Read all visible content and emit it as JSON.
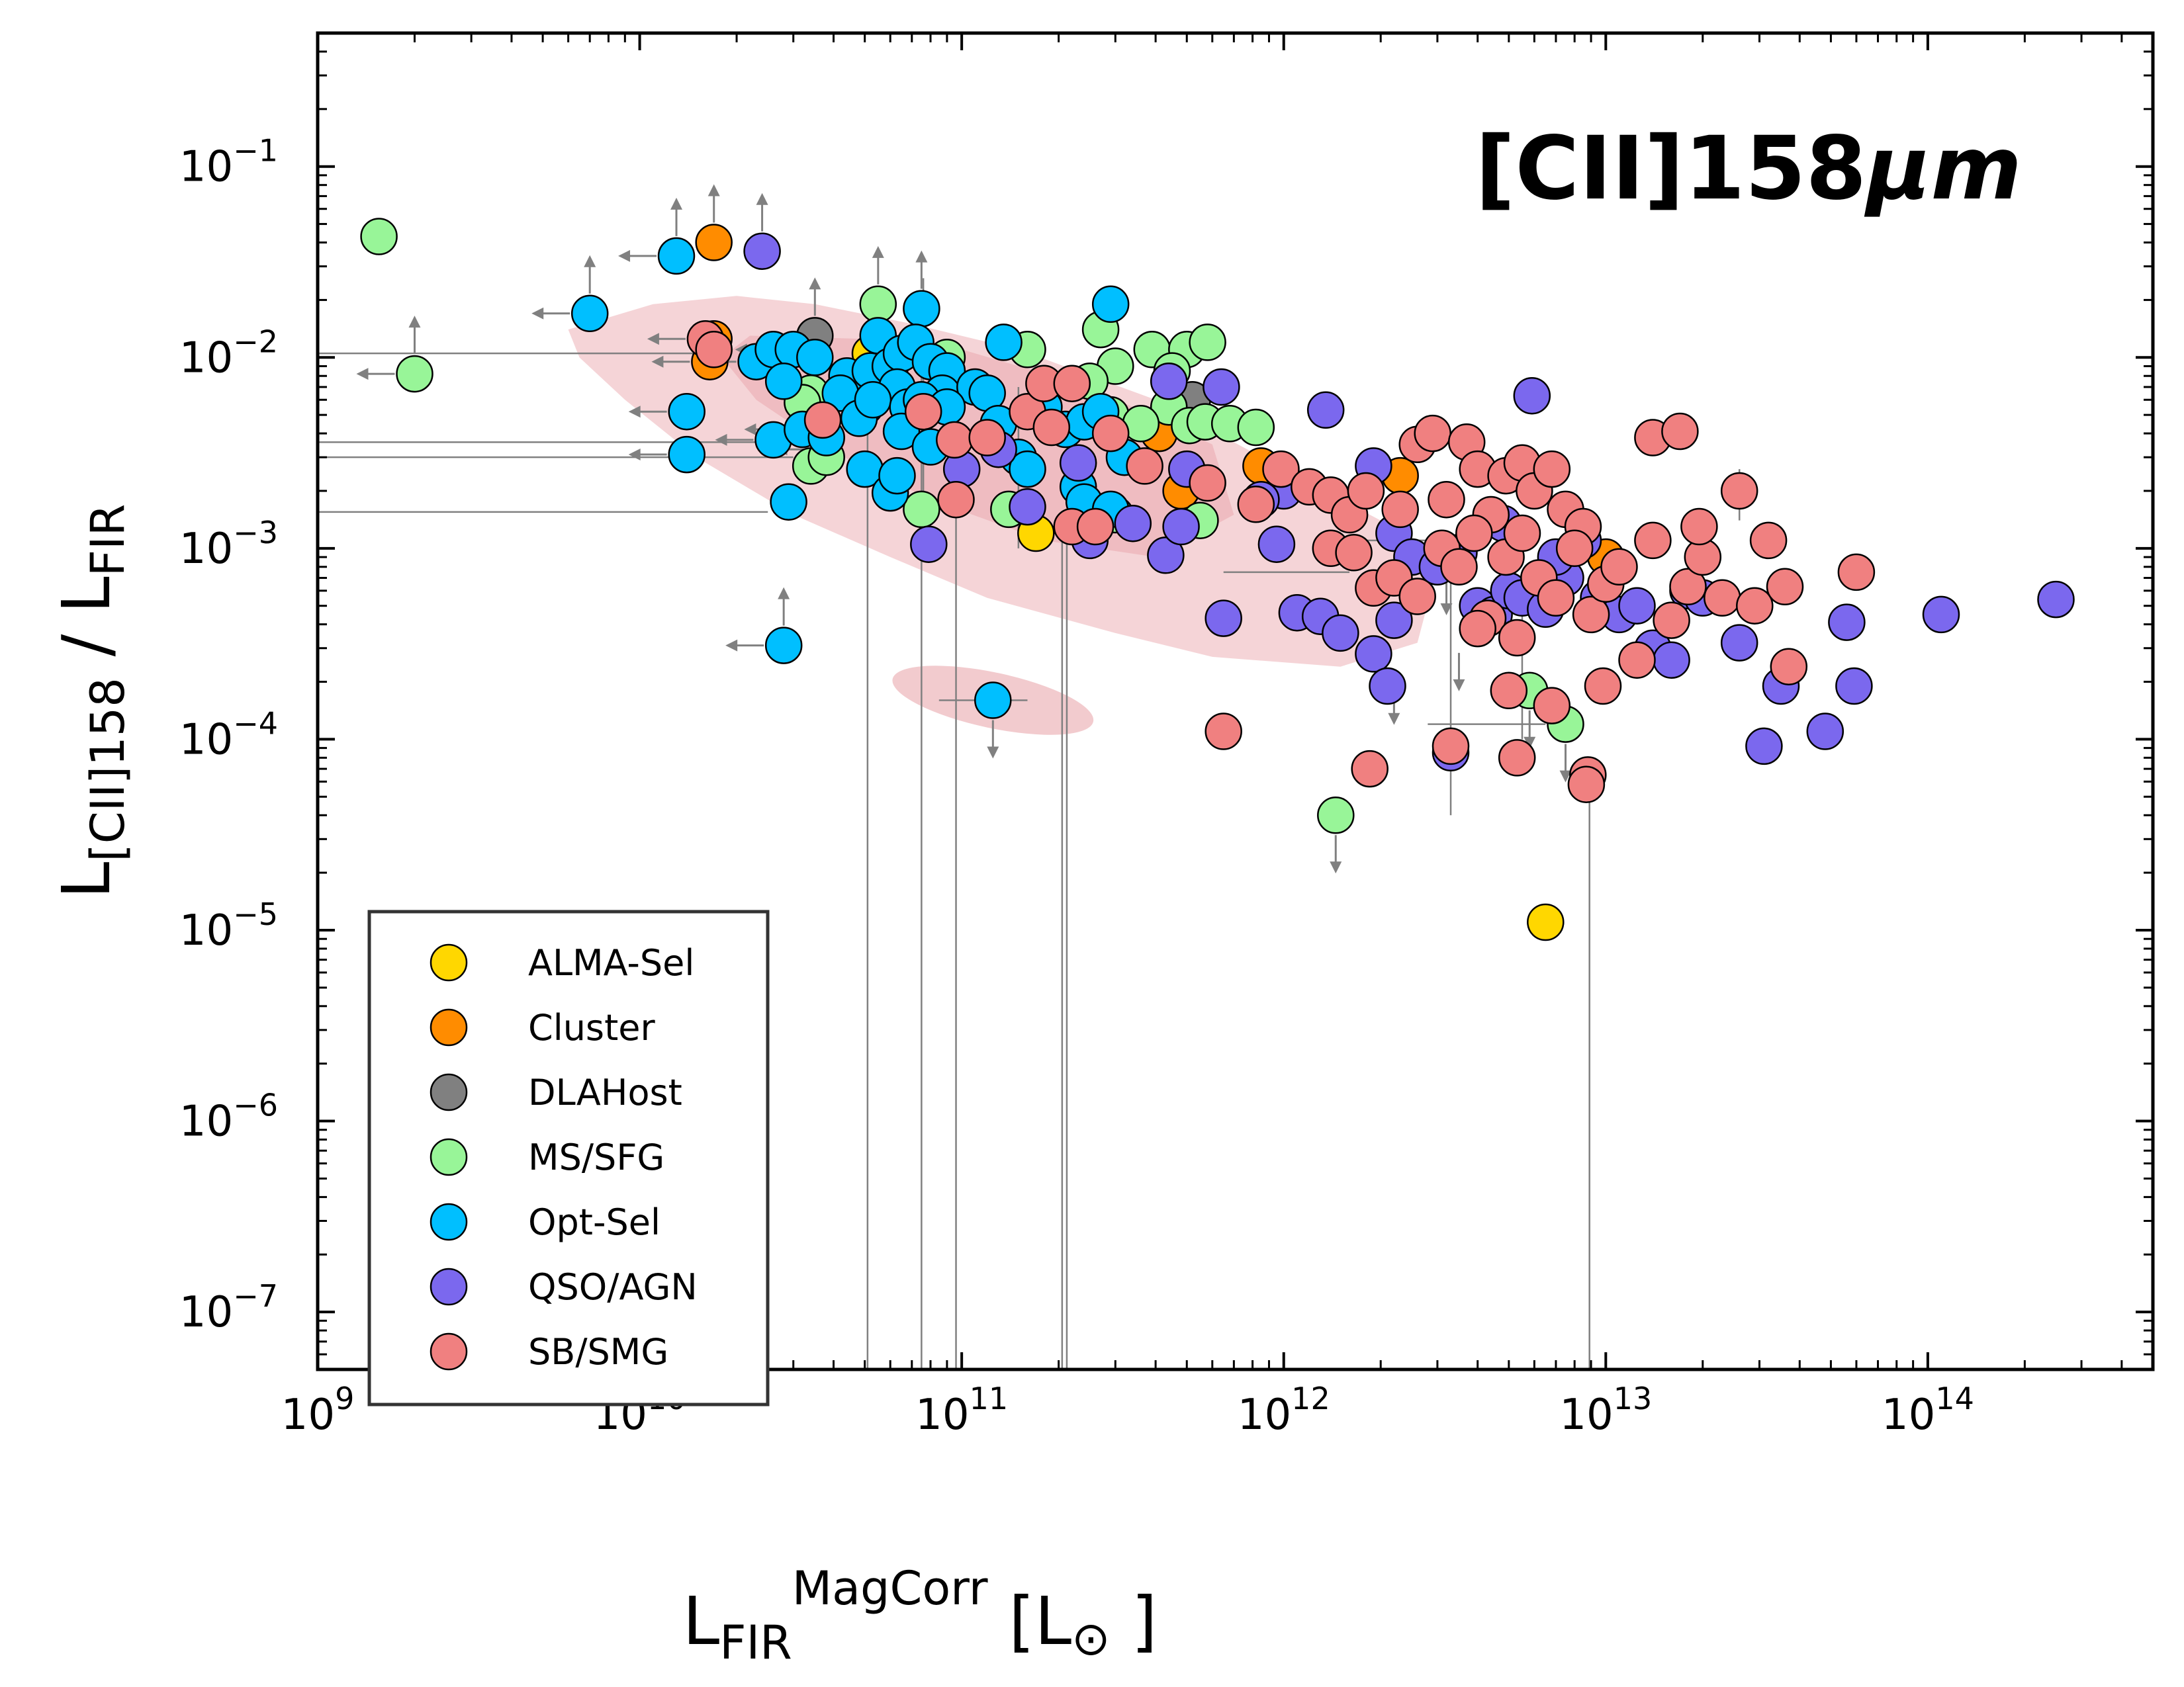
{
  "chart_data": {
    "type": "scatter",
    "annotation": "[CII]158",
    "annotation_unit": "μm",
    "xlabel": {
      "main": "L",
      "sub": "FIR",
      "sup": "MagCorr",
      "unit_open": " [L",
      "sun": "⊙",
      "unit_close": " ]"
    },
    "ylabel": {
      "main": "L",
      "sub": "[CII]158",
      "rest": " / L",
      "sub2": "FIR"
    },
    "x_scale": "log",
    "y_scale": "log",
    "xlim": [
      1000000000.0,
      500000000000000.0
    ],
    "ylim": [
      5e-08,
      0.5
    ],
    "x_ticks": [
      {
        "base": "10",
        "exp": "9"
      },
      {
        "base": "10",
        "exp": "10"
      },
      {
        "base": "10",
        "exp": "11"
      },
      {
        "base": "10",
        "exp": "12"
      },
      {
        "base": "10",
        "exp": "13"
      },
      {
        "base": "10",
        "exp": "14"
      }
    ],
    "y_ticks": [
      {
        "base": "10",
        "exp": "−7"
      },
      {
        "base": "10",
        "exp": "−6"
      },
      {
        "base": "10",
        "exp": "−5"
      },
      {
        "base": "10",
        "exp": "−4"
      },
      {
        "base": "10",
        "exp": "−3"
      },
      {
        "base": "10",
        "exp": "−2"
      },
      {
        "base": "10",
        "exp": "−1"
      }
    ],
    "legend_position": "lower-left",
    "density_contour_color": "#e8a0a6",
    "series": [
      {
        "name": "ALMA-Sel",
        "color": "#ffd700",
        "points": [
          [
            6500000000000.0,
            1.1e-05
          ],
          [
            170000000000.0,
            0.0012
          ],
          [
            52000000000.0,
            0.0105
          ]
        ]
      },
      {
        "name": "Cluster",
        "color": "#ff8c00",
        "points": [
          [
            17000000000.0,
            0.04
          ],
          [
            17000000000.0,
            0.0125
          ],
          [
            16500000000.0,
            0.0095
          ],
          [
            410000000000.0,
            0.004
          ],
          [
            480000000000.0,
            0.002
          ],
          [
            850000000000.0,
            0.0027
          ],
          [
            2300000000000.0,
            0.0024
          ],
          [
            10000000000000.0,
            0.0009
          ]
        ]
      },
      {
        "name": "DLAHost",
        "color": "#808080",
        "points": [
          [
            35000000000.0,
            0.013
          ],
          [
            520000000000.0,
            0.006
          ]
        ]
      },
      {
        "name": "MS/SFG",
        "color": "#98f598",
        "points": [
          [
            1550000000.0,
            0.043
          ],
          [
            2000000000.0,
            0.0082
          ],
          [
            55000000000.0,
            0.019
          ],
          [
            270000000000.0,
            0.014
          ],
          [
            390000000000.0,
            0.011
          ],
          [
            500000000000.0,
            0.011
          ],
          [
            580000000000.0,
            0.012
          ],
          [
            300000000000.0,
            0.009
          ],
          [
            250000000000.0,
            0.0075
          ],
          [
            450000000000.0,
            0.0085
          ],
          [
            34000000000.0,
            0.0065
          ],
          [
            50000000000.0,
            0.0055
          ],
          [
            32000000000.0,
            0.0058
          ],
          [
            290000000000.0,
            0.005
          ],
          [
            440000000000.0,
            0.0055
          ],
          [
            360000000000.0,
            0.0045
          ],
          [
            510000000000.0,
            0.0044
          ],
          [
            570000000000.0,
            0.0046
          ],
          [
            680000000000.0,
            0.0045
          ],
          [
            820000000000.0,
            0.0043
          ],
          [
            34000000000.0,
            0.0027
          ],
          [
            38000000000.0,
            0.003
          ],
          [
            75000000000.0,
            0.0016
          ],
          [
            140000000000.0,
            0.0016
          ],
          [
            300000000000.0,
            0.0015
          ],
          [
            550000000000.0,
            0.0014
          ],
          [
            90000000000.0,
            0.01
          ],
          [
            160000000000.0,
            0.011
          ],
          [
            5800000000000.0,
            0.00018
          ],
          [
            7500000000000.0,
            0.00012
          ],
          [
            1450000000000.0,
            4e-05
          ]
        ]
      },
      {
        "name": "Opt-Sel",
        "color": "#00bfff",
        "points": [
          [
            13000000000.0,
            0.034
          ],
          [
            7000000000.0,
            0.017
          ],
          [
            290000000000.0,
            0.019
          ],
          [
            75000000000.0,
            0.018
          ],
          [
            55000000000.0,
            0.013
          ],
          [
            135000000000.0,
            0.012
          ],
          [
            23000000000.0,
            0.0095
          ],
          [
            26000000000.0,
            0.011
          ],
          [
            30000000000.0,
            0.011
          ],
          [
            35000000000.0,
            0.01
          ],
          [
            44000000000.0,
            0.008
          ],
          [
            52000000000.0,
            0.0085
          ],
          [
            60000000000.0,
            0.009
          ],
          [
            65000000000.0,
            0.0105
          ],
          [
            72000000000.0,
            0.012
          ],
          [
            80000000000.0,
            0.0095
          ],
          [
            90000000000.0,
            0.0085
          ],
          [
            28000000000.0,
            0.0075
          ],
          [
            42000000000.0,
            0.0065
          ],
          [
            63000000000.0,
            0.007
          ],
          [
            87000000000.0,
            0.0065
          ],
          [
            110000000000.0,
            0.007
          ],
          [
            14000000000.0,
            0.0052
          ],
          [
            14000000000.0,
            0.0031
          ],
          [
            29000000000.0,
            0.00175
          ],
          [
            26000000000.0,
            0.0037
          ],
          [
            32000000000.0,
            0.0042
          ],
          [
            38000000000.0,
            0.0038
          ],
          [
            48000000000.0,
            0.0048
          ],
          [
            53000000000.0,
            0.006
          ],
          [
            68000000000.0,
            0.0055
          ],
          [
            75000000000.0,
            0.006
          ],
          [
            65000000000.0,
            0.0041
          ],
          [
            50000000000.0,
            0.0026
          ],
          [
            60000000000.0,
            0.00195
          ],
          [
            63000000000.0,
            0.0024
          ],
          [
            80000000000.0,
            0.0034
          ],
          [
            120000000000.0,
            0.0065
          ],
          [
            130000000000.0,
            0.0045
          ],
          [
            150000000000.0,
            0.003
          ],
          [
            160000000000.0,
            0.0026
          ],
          [
            230000000000.0,
            0.0021
          ],
          [
            240000000000.0,
            0.00175
          ],
          [
            210000000000.0,
            0.0042
          ],
          [
            240000000000.0,
            0.0046
          ],
          [
            320000000000.0,
            0.003
          ],
          [
            290000000000.0,
            0.0016
          ],
          [
            125000000000.0,
            0.00016
          ],
          [
            28000000000.0,
            0.00031
          ],
          [
            90000000000.0,
            0.0055
          ],
          [
            180000000000.0,
            0.0055
          ],
          [
            270000000000.0,
            0.0052
          ]
        ]
      },
      {
        "name": "QSO/AGN",
        "color": "#7b68ee",
        "points": [
          [
            24000000000.0,
            0.036
          ],
          [
            440000000000.0,
            0.0075
          ],
          [
            640000000000.0,
            0.007
          ],
          [
            1350000000000.0,
            0.0053
          ],
          [
            5900000000000.0,
            0.0063
          ],
          [
            250000000000000.0,
            0.00054
          ],
          [
            110000000000000.0,
            0.00045
          ],
          [
            56000000000000.0,
            0.00041
          ],
          [
            59000000000000.0,
            0.00019
          ],
          [
            48000000000000.0,
            0.00011
          ],
          [
            31000000000000.0,
            9.2e-05
          ],
          [
            35000000000000.0,
            0.00019
          ],
          [
            26000000000000.0,
            0.00032
          ],
          [
            79000000000.0,
            0.00105
          ],
          [
            160000000000.0,
            0.00165
          ],
          [
            250000000000.0,
            0.0011
          ],
          [
            340000000000.0,
            0.00135
          ],
          [
            430000000000.0,
            0.00092
          ],
          [
            480000000000.0,
            0.0013
          ],
          [
            650000000000.0,
            0.00043
          ],
          [
            500000000000.0,
            0.0026
          ],
          [
            1000000000000.0,
            0.002
          ],
          [
            1100000000000.0,
            0.00046
          ],
          [
            1300000000000.0,
            0.00044
          ],
          [
            1500000000000.0,
            0.00036
          ],
          [
            1900000000000.0,
            0.00028
          ],
          [
            2100000000000.0,
            0.00019
          ],
          [
            1900000000000.0,
            0.0027
          ],
          [
            2200000000000.0,
            0.0012
          ],
          [
            2500000000000.0,
            0.0009
          ],
          [
            3000000000000.0,
            0.0008
          ],
          [
            3500000000000.0,
            0.00095
          ],
          [
            4000000000000.0,
            0.0005
          ],
          [
            4500000000000.0,
            0.00045
          ],
          [
            5000000000000.0,
            0.0006
          ],
          [
            5500000000000.0,
            0.00055
          ],
          [
            6500000000000.0,
            0.00048
          ],
          [
            7500000000000.0,
            0.0007
          ],
          [
            8500000000000.0,
            0.0011
          ],
          [
            9500000000000.0,
            0.00055
          ],
          [
            11000000000000.0,
            0.00045
          ],
          [
            12500000000000.0,
            0.0005
          ],
          [
            14000000000000.0,
            0.0003
          ],
          [
            16000000000000.0,
            0.00026
          ],
          [
            18000000000000.0,
            0.0006
          ],
          [
            20000000000000.0,
            0.00055
          ],
          [
            3300000000000.0,
            8.5e-05
          ],
          [
            2200000000000.0,
            0.00042
          ],
          [
            850000000000.0,
            0.0018
          ],
          [
            950000000000.0,
            0.00105
          ],
          [
            130000000000.0,
            0.0033
          ],
          [
            230000000000.0,
            0.0028
          ],
          [
            100000000000.0,
            0.0026
          ],
          [
            4800000000000.0,
            0.00135
          ],
          [
            7000000000000.0,
            0.0009
          ]
        ]
      },
      {
        "name": "SB/SMG",
        "color": "#f08080",
        "points": [
          [
            16000000000.0,
            0.0125
          ],
          [
            17000000000.0,
            0.011
          ],
          [
            37000000000.0,
            0.0047
          ],
          [
            76000000000.0,
            0.0052
          ],
          [
            95000000000.0,
            0.0037
          ],
          [
            96000000000.0,
            0.0018
          ],
          [
            120000000000.0,
            0.0038
          ],
          [
            160000000000.0,
            0.0052
          ],
          [
            180000000000.0,
            0.0073
          ],
          [
            220000000000.0,
            0.0073
          ],
          [
            190000000000.0,
            0.0043
          ],
          [
            220000000000.0,
            0.0013
          ],
          [
            260000000000.0,
            0.0013
          ],
          [
            290000000000.0,
            0.004
          ],
          [
            370000000000.0,
            0.0027
          ],
          [
            580000000000.0,
            0.0022
          ],
          [
            820000000000.0,
            0.0017
          ],
          [
            980000000000.0,
            0.0026
          ],
          [
            1200000000000.0,
            0.0021
          ],
          [
            1400000000000.0,
            0.0019
          ],
          [
            1600000000000.0,
            0.0015
          ],
          [
            1800000000000.0,
            0.002
          ],
          [
            2300000000000.0,
            0.0016
          ],
          [
            2600000000000.0,
            0.0035
          ],
          [
            2900000000000.0,
            0.004
          ],
          [
            3200000000000.0,
            0.0018
          ],
          [
            3700000000000.0,
            0.0036
          ],
          [
            4000000000000.0,
            0.0026
          ],
          [
            4400000000000.0,
            0.0015
          ],
          [
            4900000000000.0,
            0.0024
          ],
          [
            5500000000000.0,
            0.0028
          ],
          [
            6000000000000.0,
            0.002
          ],
          [
            6800000000000.0,
            0.0026
          ],
          [
            7500000000000.0,
            0.0016
          ],
          [
            8500000000000.0,
            0.0013
          ],
          [
            1400000000000.0,
            0.001
          ],
          [
            1650000000000.0,
            0.00095
          ],
          [
            1900000000000.0,
            0.00062
          ],
          [
            2200000000000.0,
            0.0007
          ],
          [
            2600000000000.0,
            0.00056
          ],
          [
            3100000000000.0,
            0.001
          ],
          [
            3500000000000.0,
            0.0008
          ],
          [
            3900000000000.0,
            0.0012
          ],
          [
            4300000000000.0,
            0.00043
          ],
          [
            4900000000000.0,
            0.0009
          ],
          [
            5500000000000.0,
            0.0012
          ],
          [
            6200000000000.0,
            0.0007
          ],
          [
            7000000000000.0,
            0.00055
          ],
          [
            8000000000000.0,
            0.001
          ],
          [
            9000000000000.0,
            0.00045
          ],
          [
            10000000000000.0,
            0.00065
          ],
          [
            11000000000000.0,
            0.0008
          ],
          [
            12500000000000.0,
            0.00026
          ],
          [
            14000000000000.0,
            0.0011
          ],
          [
            16000000000000.0,
            0.00042
          ],
          [
            18000000000000.0,
            0.00063
          ],
          [
            20000000000000.0,
            0.0009
          ],
          [
            23000000000000.0,
            0.00055
          ],
          [
            26000000000000.0,
            0.002
          ],
          [
            29000000000000.0,
            0.0005
          ],
          [
            32000000000000.0,
            0.0011
          ],
          [
            36000000000000.0,
            0.00063
          ],
          [
            60000000000000.0,
            0.00075
          ],
          [
            37000000000000.0,
            0.00024
          ],
          [
            19500000000000.0,
            0.0013
          ],
          [
            14000000000000.0,
            0.0038
          ],
          [
            17000000000000.0,
            0.0041
          ],
          [
            650000000000.0,
            0.00011
          ],
          [
            1850000000000.0,
            7e-05
          ],
          [
            3300000000000.0,
            9.2e-05
          ],
          [
            5300000000000.0,
            8e-05
          ],
          [
            8800000000000.0,
            6.5e-05
          ],
          [
            8700000000000.0,
            5.8e-05
          ],
          [
            6800000000000.0,
            0.00015
          ],
          [
            5000000000000.0,
            0.00018
          ],
          [
            9800000000000.0,
            0.00019
          ],
          [
            5300000000000.0,
            0.00034
          ],
          [
            4000000000000.0,
            0.00038
          ]
        ]
      }
    ]
  }
}
